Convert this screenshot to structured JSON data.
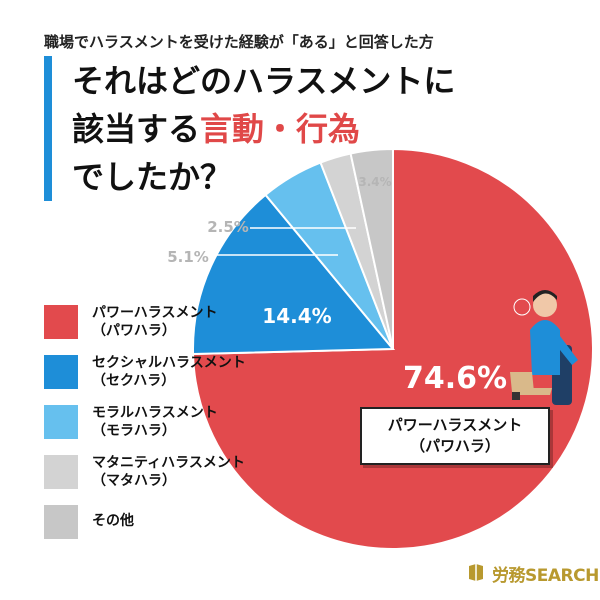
{
  "header": {
    "subtitle": "職場でハラスメントを受けた経験が「ある」と回答した方",
    "title_line1": "それはどのハラスメントに",
    "title_line2_prefix": "該当する",
    "title_line2_accent": "言動・行為",
    "title_line3": "でしたか？"
  },
  "chart_data": {
    "type": "pie",
    "title": "それはどのハラスメントに該当する言動・行為でしたか？",
    "slices": [
      {
        "label": "パワーハラスメント（パワハラ）",
        "value": 74.6,
        "value_label": "74.6%",
        "color": "#e24a4d"
      },
      {
        "label": "セクシャルハラスメント（セクハラ）",
        "value": 14.4,
        "value_label": "14.4%",
        "color": "#1e8ed8"
      },
      {
        "label": "モラルハラスメント（モラハラ）",
        "value": 5.1,
        "value_label": "5.1%",
        "color": "#66c0ee"
      },
      {
        "label": "マタニティハラスメント（マタハラ）",
        "value": 2.5,
        "value_label": "2.5%",
        "color": "#d3d3d3"
      },
      {
        "label": "その他",
        "value": 3.4,
        "value_label": "3.4%",
        "color": "#c7c7c7"
      }
    ],
    "legend_position": "left"
  },
  "legend": [
    {
      "text": "パワーハラスメント\n（パワハラ）",
      "color": "#e24a4d"
    },
    {
      "text": "セクシャルハラスメント\n（セクハラ）",
      "color": "#1e8ed8"
    },
    {
      "text": "モラルハラスメント\n（モラハラ）",
      "color": "#66c0ee"
    },
    {
      "text": "マタニティハラスメント\n（マタハラ）",
      "color": "#d3d3d3"
    },
    {
      "text": "その他",
      "color": "#c7c7c7"
    }
  ],
  "callout": {
    "text": "パワーハラスメント\n（パワハラ）"
  },
  "brand": {
    "name": "労務SEARCH",
    "color": "#b8992f"
  },
  "colors": {
    "accent_red": "#e04848",
    "accent_blue": "#1e8ed8"
  }
}
